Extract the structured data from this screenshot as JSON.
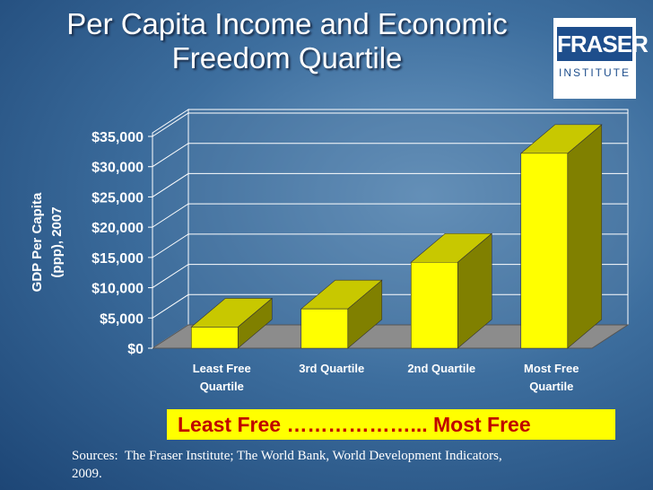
{
  "chart_data": {
    "type": "bar3d",
    "title": "Per Capita Income and Economic Freedom Quartile",
    "y_label": "GDP Per Capita (ppp), 2007",
    "categories": [
      "Least Free Quartile",
      "3rd Quartile",
      "2nd Quartile",
      "Most Free Quartile"
    ],
    "values": [
      3500,
      6500,
      14200,
      32200
    ],
    "color": "#ffff00",
    "ylim": [
      0,
      35000
    ],
    "yticks": [
      {
        "value": 0,
        "label": "$0"
      },
      {
        "value": 5000,
        "label": "$5,000"
      },
      {
        "value": 10000,
        "label": "$10,000"
      },
      {
        "value": 15000,
        "label": "$15,000"
      },
      {
        "value": 20000,
        "label": "$20,000"
      },
      {
        "value": 25000,
        "label": "$25,000"
      },
      {
        "value": 30000,
        "label": "$30,000"
      },
      {
        "value": 35000,
        "label": "$35,000"
      }
    ],
    "grid": true,
    "scale_note": "Least Free ………………... Most Free",
    "sources": "Sources:  The Fraser Institute; The World Bank, World Development Indicators,            2009."
  },
  "logo": {
    "name": "FRASER",
    "sub": "INSTITUTE"
  }
}
